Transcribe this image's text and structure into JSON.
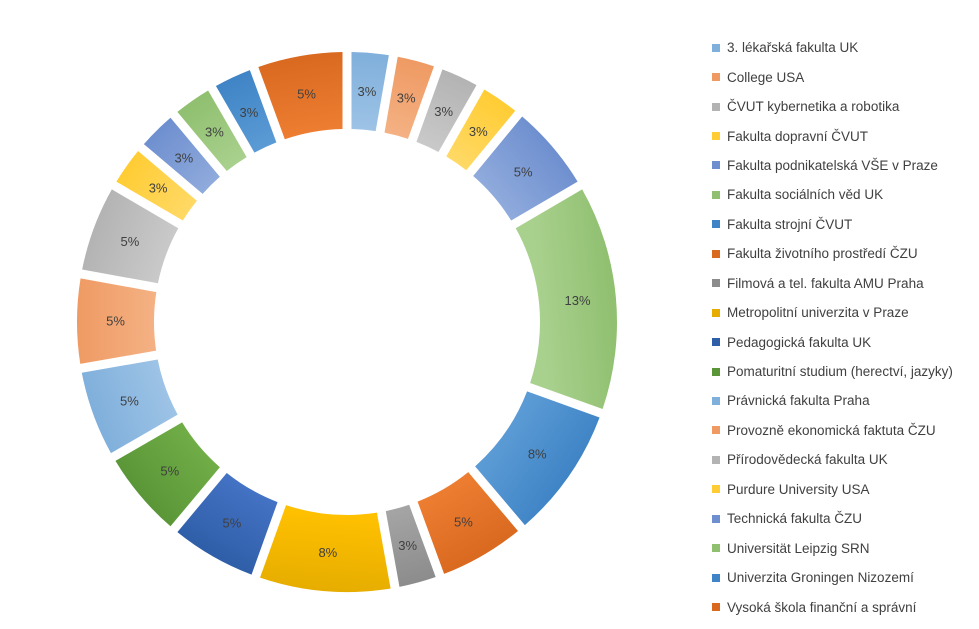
{
  "chart_data": {
    "type": "pie",
    "variant": "donut",
    "title": "",
    "legend_position": "right",
    "categories": [
      "3. lékařská fakulta UK",
      "College USA",
      "ČVUT kybernetika a robotika",
      "Fakulta dopravní ČVUT",
      "Fakulta podnikatelská VŠE v Praze",
      "Fakulta sociálních věd UK",
      "Fakulta strojní ČVUT",
      "Fakulta životního prostředí ČZU",
      "Filmová a tel. fakulta AMU Praha",
      "Metropolitní univerzita v Praze",
      "Pedagogická fakulta UK",
      "Pomaturitní studium (herectví, jazyky)",
      "Právnická fakulta Praha",
      "Provozně ekonomická faktuta ČZU",
      "Přírodovědecká fakulta UK",
      "Purdure University USA",
      "Technická fakulta ČZU",
      "Universität Leipzig SRN",
      "Univerzita Groningen Nizozemí",
      "Vysoká škola finanční a správní"
    ],
    "values": [
      2.6,
      2.6,
      2.6,
      2.6,
      5.3,
      13.2,
      7.9,
      5.3,
      2.6,
      7.9,
      5.3,
      5.3,
      5.3,
      5.3,
      5.3,
      2.6,
      2.6,
      2.6,
      2.6,
      5.3
    ],
    "data_labels": [
      "3%",
      "3%",
      "3%",
      "3%",
      "5%",
      "13%",
      "8%",
      "5%",
      "3%",
      "8%",
      "5%",
      "5%",
      "5%",
      "5%",
      "5%",
      "3%",
      "3%",
      "3%",
      "3%",
      "5%"
    ],
    "colors": [
      "#9dc3e6",
      "#f4b183",
      "#c9c9c9",
      "#ffd966",
      "#8faadc",
      "#a9d18e",
      "#5b9bd5",
      "#ed7d31",
      "#a5a5a5",
      "#ffc000",
      "#4472c4",
      "#70ad47",
      "#9dc3e6",
      "#f4b183",
      "#c9c9c9",
      "#ffd966",
      "#8faadc",
      "#a9d18e",
      "#5b9bd5",
      "#ed7d31"
    ],
    "colors_dark": [
      "#7fafdb",
      "#ef9a63",
      "#b3b3b3",
      "#ffcc33",
      "#6e8fcf",
      "#8fbf6f",
      "#3f84c6",
      "#d9691f",
      "#8c8c8c",
      "#e6ad00",
      "#2f5ea8",
      "#5a9637",
      "#7fafdb",
      "#ef9a63",
      "#b3b3b3",
      "#ffcc33",
      "#6e8fcf",
      "#8fbf6f",
      "#3f84c6",
      "#d9691f"
    ]
  }
}
